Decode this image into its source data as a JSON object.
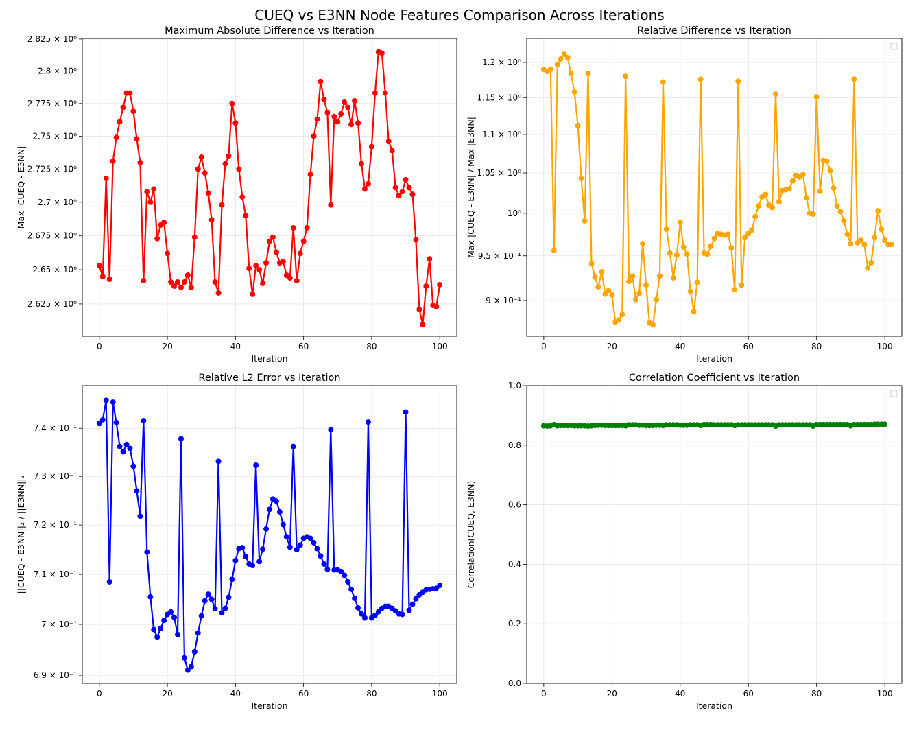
{
  "suptitle": "CUEQ vs E3NN Node Features Comparison Across Iterations",
  "chart_data": [
    {
      "type": "line",
      "title": "Maximum Absolute Difference vs Iteration",
      "xlabel": "Iteration",
      "ylabel": "Max |CUEQ - E3NN|",
      "yscale": "log",
      "xlim": [
        -5,
        105
      ],
      "ylim": [
        2.6016,
        2.8255
      ],
      "grid": true,
      "color": "#ff0000",
      "legend": "none",
      "xticks": [
        0,
        20,
        40,
        60,
        80,
        100
      ],
      "xtick_labels": [
        "0",
        "20",
        "40",
        "60",
        "80",
        "100"
      ],
      "yticks": [
        2.625,
        2.65,
        2.675,
        2.7,
        2.725,
        2.75,
        2.775,
        2.8,
        2.825
      ],
      "ytick_labels": [
        "2.625 × 10⁰",
        "2.65 × 10⁰",
        "2.675 × 10⁰",
        "2.7 × 10⁰",
        "2.725 × 10⁰",
        "2.75 × 10⁰",
        "2.775 × 10⁰",
        "2.8 × 10⁰",
        "2.825 × 10⁰"
      ],
      "values": [
        2.653,
        2.645,
        2.718,
        2.643,
        2.731,
        2.749,
        2.761,
        2.772,
        2.783,
        2.783,
        2.769,
        2.748,
        2.73,
        2.642,
        2.708,
        2.7,
        2.71,
        2.673,
        2.683,
        2.685,
        2.662,
        2.641,
        2.638,
        2.641,
        2.637,
        2.641,
        2.646,
        2.637,
        2.674,
        2.725,
        2.734,
        2.722,
        2.707,
        2.687,
        2.641,
        2.633,
        2.698,
        2.729,
        2.735,
        2.775,
        2.76,
        2.725,
        2.704,
        2.69,
        2.651,
        2.632,
        2.653,
        2.65,
        2.64,
        2.655,
        2.671,
        2.674,
        2.663,
        2.655,
        2.656,
        2.646,
        2.644,
        2.681,
        2.642,
        2.662,
        2.671,
        2.681,
        2.721,
        2.75,
        2.763,
        2.792,
        2.778,
        2.768,
        2.698,
        2.765,
        2.761,
        2.767,
        2.776,
        2.772,
        2.759,
        2.777,
        2.76,
        2.729,
        2.71,
        2.714,
        2.742,
        2.783,
        2.815,
        2.814,
        2.783,
        2.746,
        2.739,
        2.711,
        2.705,
        2.708,
        2.717,
        2.711,
        2.706,
        2.672,
        2.621,
        2.61,
        2.638,
        2.658,
        2.624,
        2.623,
        2.639
      ]
    },
    {
      "type": "line",
      "title": "Relative Difference vs Iteration",
      "xlabel": "Iteration",
      "ylabel": "Max |CUEQ - E3NN| / Max |E3NN|",
      "yscale": "log",
      "xlim": [
        -5,
        105
      ],
      "ylim": [
        0.862,
        1.2353
      ],
      "grid": true,
      "color": "#ffa500",
      "legend": "top-right (empty)",
      "xticks": [
        0,
        20,
        40,
        60,
        80,
        100
      ],
      "xtick_labels": [
        "0",
        "20",
        "40",
        "60",
        "80",
        "100"
      ],
      "yticks": [
        0.9,
        0.95,
        1.0,
        1.05,
        1.1,
        1.15,
        1.2
      ],
      "ytick_labels": [
        "9 × 10⁻¹",
        "9.5 × 10⁻¹",
        "10⁰",
        "1.05 × 10⁰",
        "1.1 × 10⁰",
        "1.15 × 10⁰",
        "1.2 × 10⁰"
      ],
      "values": [
        1.19,
        1.187,
        1.19,
        0.956,
        1.197,
        1.205,
        1.212,
        1.207,
        1.184,
        1.158,
        1.112,
        1.043,
        0.991,
        1.184,
        0.941,
        0.926,
        0.915,
        0.932,
        0.907,
        0.911,
        0.906,
        0.877,
        0.879,
        0.885,
        1.18,
        0.921,
        0.927,
        0.901,
        0.908,
        0.964,
        0.917,
        0.876,
        0.874,
        0.901,
        0.927,
        1.172,
        0.981,
        0.953,
        0.925,
        0.951,
        0.989,
        0.96,
        0.952,
        0.91,
        0.888,
        0.92,
        1.176,
        0.953,
        0.952,
        0.961,
        0.97,
        0.976,
        0.975,
        0.974,
        0.975,
        0.959,
        0.912,
        1.173,
        0.917,
        0.971,
        0.976,
        0.98,
        0.996,
        1.009,
        1.02,
        1.023,
        1.01,
        1.007,
        1.155,
        1.014,
        1.028,
        1.029,
        1.03,
        1.04,
        1.047,
        1.045,
        1.048,
        1.019,
        1.0,
        0.999,
        1.151,
        1.027,
        1.066,
        1.065,
        1.053,
        1.031,
        1.009,
        1.002,
        0.991,
        0.975,
        0.964,
        1.176,
        0.965,
        0.968,
        0.963,
        0.936,
        0.942,
        0.971,
        1.003,
        0.981,
        0.968,
        0.963,
        0.963
      ]
    },
    {
      "type": "line",
      "title": "Relative L2 Error vs Iteration",
      "xlabel": "Iteration",
      "ylabel": "||CUEQ - E3NN||₂ / ||E3NN||₂",
      "yscale": "log",
      "xlim": [
        -5,
        105
      ],
      "ylim": [
        0.6884,
        0.749
      ],
      "grid": true,
      "color": "#0000ff",
      "legend": "none",
      "xticks": [
        0,
        20,
        40,
        60,
        80,
        100
      ],
      "xtick_labels": [
        "0",
        "20",
        "40",
        "60",
        "80",
        "100"
      ],
      "yticks": [
        0.69,
        0.7,
        0.71,
        0.72,
        0.73,
        0.74
      ],
      "ytick_labels": [
        "6.9 × 10⁻¹",
        "7 × 10⁻¹",
        "7.1 × 10⁻¹",
        "7.2 × 10⁻¹",
        "7.3 × 10⁻¹",
        "7.4 × 10⁻¹"
      ],
      "values": [
        0.741,
        0.7418,
        0.7459,
        0.7085,
        0.7455,
        0.7412,
        0.7362,
        0.7351,
        0.7366,
        0.7358,
        0.7321,
        0.727,
        0.7218,
        0.7416,
        0.7145,
        0.7055,
        0.699,
        0.6975,
        0.6992,
        0.7008,
        0.702,
        0.7025,
        0.7014,
        0.698,
        0.7378,
        0.6934,
        0.691,
        0.6917,
        0.6946,
        0.6983,
        0.7017,
        0.7047,
        0.706,
        0.705,
        0.7031,
        0.7331,
        0.7023,
        0.7032,
        0.7054,
        0.709,
        0.7128,
        0.7152,
        0.7154,
        0.7136,
        0.7121,
        0.7118,
        0.7323,
        0.7126,
        0.7151,
        0.7192,
        0.7232,
        0.7253,
        0.7249,
        0.7227,
        0.7201,
        0.7176,
        0.7155,
        0.7362,
        0.715,
        0.7159,
        0.7173,
        0.7176,
        0.7173,
        0.7164,
        0.7152,
        0.7137,
        0.7121,
        0.711,
        0.7397,
        0.7109,
        0.7109,
        0.7106,
        0.7098,
        0.7085,
        0.707,
        0.7052,
        0.7033,
        0.7021,
        0.7013,
        0.7413,
        0.7013,
        0.7018,
        0.7025,
        0.7032,
        0.7036,
        0.7036,
        0.7032,
        0.7027,
        0.7021,
        0.702,
        0.7434,
        0.7028,
        0.704,
        0.7051,
        0.7059,
        0.7064,
        0.7069,
        0.707,
        0.7071,
        0.7072,
        0.7078
      ]
    },
    {
      "type": "line",
      "title": "Correlation Coefficient vs Iteration",
      "xlabel": "Iteration",
      "ylabel": "Correlation(CUEQ, E3NN)",
      "yscale": "linear",
      "xlim": [
        -5,
        105
      ],
      "ylim": [
        0,
        1
      ],
      "grid": true,
      "color": "#008000",
      "legend": "top-right (empty)",
      "xticks": [
        0,
        20,
        40,
        60,
        80,
        100
      ],
      "xtick_labels": [
        "0",
        "20",
        "40",
        "60",
        "80",
        "100"
      ],
      "yticks": [
        0,
        0.2,
        0.4,
        0.6,
        0.8,
        1.0
      ],
      "ytick_labels": [
        "0.0",
        "0.2",
        "0.4",
        "0.6",
        "0.8",
        "1.0"
      ],
      "values": [
        0.865,
        0.864,
        0.865,
        0.869,
        0.865,
        0.866,
        0.866,
        0.866,
        0.866,
        0.865,
        0.865,
        0.865,
        0.865,
        0.864,
        0.865,
        0.866,
        0.867,
        0.867,
        0.866,
        0.866,
        0.866,
        0.866,
        0.866,
        0.866,
        0.865,
        0.868,
        0.868,
        0.868,
        0.867,
        0.867,
        0.866,
        0.866,
        0.866,
        0.867,
        0.867,
        0.866,
        0.868,
        0.868,
        0.868,
        0.868,
        0.867,
        0.867,
        0.867,
        0.868,
        0.868,
        0.868,
        0.866,
        0.869,
        0.869,
        0.869,
        0.868,
        0.868,
        0.868,
        0.868,
        0.868,
        0.868,
        0.866,
        0.868,
        0.868,
        0.868,
        0.868,
        0.868,
        0.868,
        0.868,
        0.868,
        0.868,
        0.868,
        0.868,
        0.864,
        0.868,
        0.868,
        0.868,
        0.868,
        0.868,
        0.868,
        0.868,
        0.868,
        0.868,
        0.868,
        0.864,
        0.869,
        0.869,
        0.869,
        0.869,
        0.869,
        0.869,
        0.869,
        0.869,
        0.869,
        0.869,
        0.865,
        0.869,
        0.869,
        0.869,
        0.869,
        0.869,
        0.869,
        0.87,
        0.87,
        0.87,
        0.87
      ]
    }
  ]
}
